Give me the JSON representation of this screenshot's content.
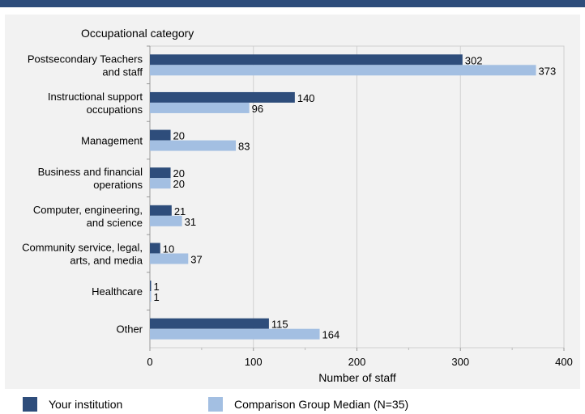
{
  "chart_data": {
    "type": "bar",
    "orientation": "horizontal",
    "category_axis_title": "Occupational category",
    "xlabel": "Number of staff",
    "xlim": [
      0,
      400
    ],
    "xticks": [
      0,
      100,
      200,
      300,
      400
    ],
    "grid": true,
    "legend_position": "bottom",
    "categories": [
      [
        "Postsecondary Teachers",
        "and staff"
      ],
      [
        "Instructional support",
        "occupations"
      ],
      [
        "Management"
      ],
      [
        "Business and financial",
        "operations"
      ],
      [
        "Computer, engineering,",
        "and science"
      ],
      [
        "Community service, legal,",
        "arts, and media"
      ],
      [
        "Healthcare"
      ],
      [
        "Other"
      ]
    ],
    "series": [
      {
        "name": "Your institution",
        "color": "#2e4d7b",
        "values": [
          302,
          140,
          20,
          20,
          21,
          10,
          1,
          115
        ]
      },
      {
        "name": "Comparison Group Median (N=35)",
        "color": "#a3bfe2",
        "values": [
          373,
          96,
          83,
          20,
          31,
          37,
          1,
          164
        ]
      }
    ]
  }
}
